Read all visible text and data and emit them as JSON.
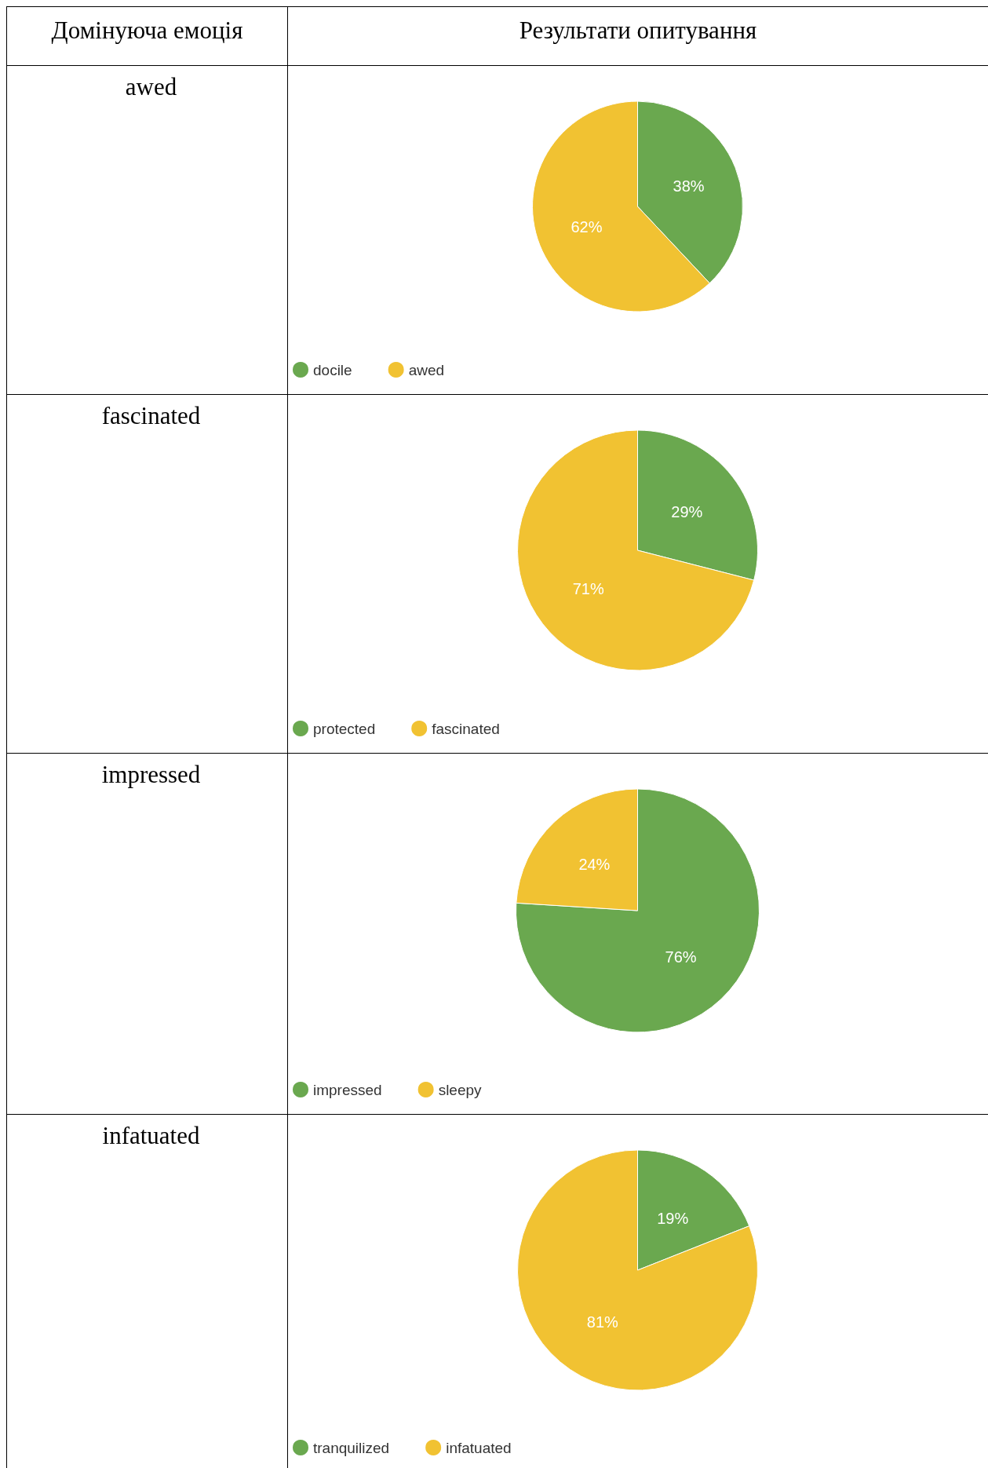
{
  "chart_data": [
    {
      "type": "other",
      "annotations": [
        "Домінуюча емоція",
        "Результати опитування"
      ]
    },
    {
      "type": "pie",
      "title": "awed",
      "categories": [
        "docile",
        "awed"
      ],
      "values": [
        38,
        62
      ],
      "value_labels": [
        "38%",
        "62%"
      ],
      "colors": [
        "#6aa84f",
        "#f1c232"
      ],
      "legend": "bottom"
    },
    {
      "type": "pie",
      "title": "fascinated",
      "categories": [
        "protected",
        "fascinated"
      ],
      "values": [
        29,
        71
      ],
      "value_labels": [
        "29%",
        "71%"
      ],
      "colors": [
        "#6aa84f",
        "#f1c232"
      ],
      "legend": "bottom"
    },
    {
      "type": "pie",
      "title": "impressed",
      "categories": [
        "impressed",
        "sleepy"
      ],
      "values": [
        76,
        24
      ],
      "value_labels": [
        "76%",
        "24%"
      ],
      "colors": [
        "#6aa84f",
        "#f1c232"
      ],
      "legend": "bottom"
    },
    {
      "type": "pie",
      "title": "infatuated",
      "categories": [
        "tranquilized",
        "infatuated"
      ],
      "values": [
        19,
        81
      ],
      "value_labels": [
        "19%",
        "81%"
      ],
      "colors": [
        "#6aa84f",
        "#f1c232"
      ],
      "legend": "bottom"
    }
  ]
}
